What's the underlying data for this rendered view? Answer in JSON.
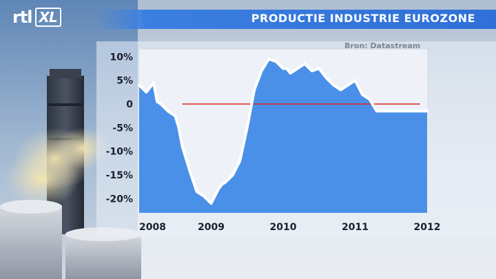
{
  "header": {
    "logo_text": "rtl",
    "logo_badge": "XL",
    "title": "PRODUCTIE INDUSTRIE EUROZONE"
  },
  "chart_data": {
    "type": "area",
    "title": "PRODUCTIE INDUSTRIE EUROZONE",
    "source": "Bron: Datastream",
    "xlabel": "",
    "ylabel": "",
    "x_ticks": [
      "2008",
      "2009",
      "2010",
      "2011",
      "2012"
    ],
    "y_ticks": [
      {
        "value": 10,
        "label": "10%"
      },
      {
        "value": 5,
        "label": "5%"
      },
      {
        "value": 0,
        "label": "0"
      },
      {
        "value": -5,
        "label": "-5%"
      },
      {
        "value": -10,
        "label": "-10%"
      },
      {
        "value": -15,
        "label": "-15%"
      },
      {
        "value": -20,
        "label": "-20%"
      }
    ],
    "xlim": [
      2008.0,
      2012.0
    ],
    "ylim": [
      -23,
      11.5
    ],
    "zero_line": true,
    "colors": {
      "area": "#4a90e8",
      "line": "#ffffff",
      "zero_line": "#e02020"
    },
    "series": [
      {
        "x": [
          2008.0,
          2008.1,
          2008.2,
          2008.25,
          2008.3,
          2008.4,
          2008.5,
          2008.55,
          2008.6,
          2008.7,
          2008.8,
          2008.9,
          2009.0,
          2009.05,
          2009.1,
          2009.15,
          2009.2,
          2009.3,
          2009.4,
          2009.5,
          2009.6,
          2009.7,
          2009.8,
          2009.9,
          2010.0,
          2010.05,
          2010.1,
          2010.2,
          2010.3,
          2010.4,
          2010.5,
          2010.6,
          2010.7,
          2010.8,
          2010.9,
          2011.0,
          2011.1,
          2011.2,
          2011.3,
          2011.4,
          2011.5,
          2011.6,
          2011.7,
          2011.8,
          2011.9,
          2012.0
        ],
        "y": [
          4,
          2.5,
          4.5,
          0.5,
          0,
          -1.5,
          -2.5,
          -5,
          -9,
          -14,
          -18.5,
          -19.5,
          -21,
          -19.5,
          -18,
          -17,
          -16.5,
          -15,
          -12,
          -5,
          3,
          7,
          9.5,
          9,
          7.5,
          7.5,
          6.5,
          7.5,
          8.5,
          7,
          7.5,
          5.5,
          4,
          3,
          4,
          5,
          2,
          1,
          -1.5,
          -1.5,
          -1.5,
          -1.5,
          -1.5,
          -1.5,
          -1.5,
          -1.5
        ]
      }
    ]
  }
}
